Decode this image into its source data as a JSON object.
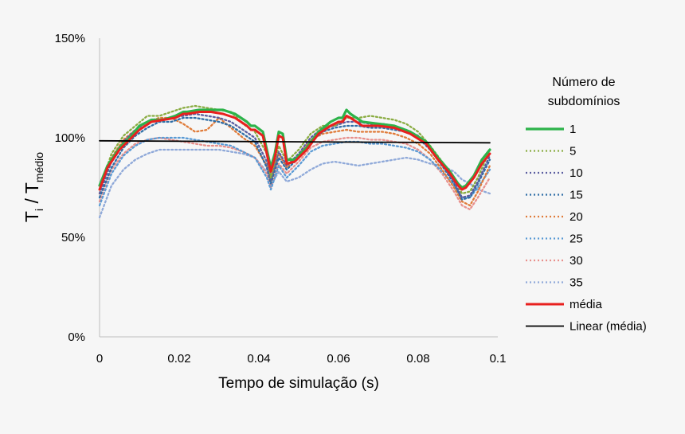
{
  "chart_data": {
    "type": "line",
    "xlabel": "Tempo de simulação (s)",
    "ylabel": {
      "t1": "T",
      "s1": "i",
      "mid": " / T",
      "s2": "médio"
    },
    "xlim": [
      0,
      0.1
    ],
    "ylim": [
      0,
      150
    ],
    "x_ticks": [
      {
        "value": 0,
        "label": "0"
      },
      {
        "value": 0.02,
        "label": "0.02"
      },
      {
        "value": 0.04,
        "label": "0.04"
      },
      {
        "value": 0.06,
        "label": "0.06"
      },
      {
        "value": 0.08,
        "label": "0.08"
      },
      {
        "value": 0.1,
        "label": "0.1"
      }
    ],
    "y_ticks": [
      {
        "value": 0,
        "label": "0%"
      },
      {
        "value": 50,
        "label": "50%"
      },
      {
        "value": 100,
        "label": "100%"
      },
      {
        "value": 150,
        "label": "150%"
      }
    ],
    "grid": false,
    "legend": {
      "title_line1": "Número de",
      "title_line2": "subdomínios",
      "position": "right"
    },
    "series": [
      {
        "name": "1",
        "color": "#2db34a",
        "style": "solid",
        "x": [
          0,
          0.002,
          0.005,
          0.008,
          0.01,
          0.013,
          0.016,
          0.019,
          0.021,
          0.022,
          0.025,
          0.028,
          0.031,
          0.034,
          0.037,
          0.038,
          0.039,
          0.041,
          0.043,
          0.044,
          0.045,
          0.046,
          0.047,
          0.049,
          0.052,
          0.055,
          0.058,
          0.06,
          0.061,
          0.062,
          0.063,
          0.066,
          0.07,
          0.074,
          0.078,
          0.082,
          0.085,
          0.088,
          0.09,
          0.091,
          0.092,
          0.094,
          0.096,
          0.098
        ],
        "y": [
          76,
          86,
          95,
          101,
          106,
          109,
          109,
          111,
          113,
          113,
          114,
          114,
          114,
          112,
          108,
          106,
          106,
          103,
          85,
          92,
          103,
          102,
          89,
          89,
          95,
          103,
          108,
          110,
          110,
          114,
          112,
          108,
          107,
          106,
          103,
          98,
          90,
          83,
          77,
          75,
          76,
          81,
          89,
          94
        ]
      },
      {
        "name": "5",
        "color": "#8aac42",
        "style": "dotted",
        "x": [
          0,
          0.003,
          0.006,
          0.009,
          0.012,
          0.015,
          0.018,
          0.021,
          0.024,
          0.027,
          0.03,
          0.033,
          0.036,
          0.039,
          0.042,
          0.043,
          0.045,
          0.047,
          0.05,
          0.053,
          0.056,
          0.059,
          0.062,
          0.065,
          0.068,
          0.071,
          0.074,
          0.077,
          0.08,
          0.083,
          0.086,
          0.089,
          0.091,
          0.093,
          0.095,
          0.098
        ],
        "y": [
          74,
          92,
          101,
          106,
          111,
          111,
          113,
          115,
          116,
          115,
          114,
          113,
          107,
          103,
          92,
          80,
          96,
          88,
          94,
          102,
          106,
          106,
          110,
          110,
          111,
          110,
          109,
          107,
          103,
          96,
          88,
          80,
          72,
          73,
          80,
          94
        ]
      },
      {
        "name": "10",
        "color": "#5b5ea0",
        "style": "dotted",
        "x": [
          0,
          0.003,
          0.006,
          0.009,
          0.012,
          0.015,
          0.018,
          0.021,
          0.024,
          0.027,
          0.03,
          0.033,
          0.036,
          0.039,
          0.042,
          0.043,
          0.045,
          0.047,
          0.05,
          0.053,
          0.056,
          0.059,
          0.062,
          0.065,
          0.068,
          0.071,
          0.074,
          0.077,
          0.08,
          0.083,
          0.086,
          0.089,
          0.091,
          0.093,
          0.095,
          0.098
        ],
        "y": [
          72,
          88,
          98,
          104,
          108,
          109,
          110,
          111,
          112,
          111,
          110,
          108,
          104,
          100,
          88,
          79,
          93,
          86,
          92,
          100,
          105,
          106,
          108,
          108,
          107,
          107,
          106,
          104,
          101,
          95,
          87,
          78,
          70,
          71,
          78,
          91
        ]
      },
      {
        "name": "15",
        "color": "#2f6ea6",
        "style": "dotted",
        "x": [
          0,
          0.003,
          0.006,
          0.009,
          0.012,
          0.015,
          0.018,
          0.021,
          0.024,
          0.027,
          0.03,
          0.033,
          0.036,
          0.039,
          0.042,
          0.043,
          0.045,
          0.047,
          0.05,
          0.053,
          0.056,
          0.059,
          0.062,
          0.065,
          0.068,
          0.071,
          0.074,
          0.077,
          0.08,
          0.083,
          0.086,
          0.089,
          0.091,
          0.093,
          0.095,
          0.098
        ],
        "y": [
          70,
          85,
          95,
          101,
          105,
          108,
          108,
          110,
          110,
          109,
          108,
          106,
          102,
          98,
          85,
          77,
          90,
          84,
          90,
          98,
          103,
          105,
          106,
          106,
          105,
          105,
          104,
          103,
          100,
          94,
          86,
          77,
          69,
          70,
          77,
          89
        ]
      },
      {
        "name": "20",
        "color": "#e07b39",
        "style": "dotted",
        "x": [
          0,
          0.003,
          0.006,
          0.009,
          0.012,
          0.015,
          0.018,
          0.021,
          0.024,
          0.027,
          0.03,
          0.033,
          0.036,
          0.039,
          0.042,
          0.043,
          0.045,
          0.047,
          0.05,
          0.053,
          0.056,
          0.059,
          0.062,
          0.065,
          0.068,
          0.071,
          0.074,
          0.077,
          0.08,
          0.083,
          0.086,
          0.089,
          0.091,
          0.093,
          0.095,
          0.098
        ],
        "y": [
          72,
          90,
          99,
          104,
          108,
          110,
          110,
          107,
          103,
          104,
          110,
          105,
          100,
          96,
          86,
          78,
          92,
          85,
          91,
          99,
          102,
          103,
          104,
          103,
          103,
          103,
          102,
          100,
          97,
          92,
          84,
          75,
          68,
          66,
          73,
          86
        ]
      },
      {
        "name": "25",
        "color": "#5b9bd5",
        "style": "dotted",
        "x": [
          0,
          0.003,
          0.006,
          0.009,
          0.012,
          0.015,
          0.018,
          0.021,
          0.024,
          0.027,
          0.03,
          0.033,
          0.036,
          0.039,
          0.042,
          0.043,
          0.045,
          0.047,
          0.05,
          0.053,
          0.056,
          0.059,
          0.062,
          0.065,
          0.068,
          0.071,
          0.074,
          0.077,
          0.08,
          0.083,
          0.086,
          0.089,
          0.091,
          0.093,
          0.095,
          0.098
        ],
        "y": [
          66,
          82,
          91,
          96,
          99,
          100,
          100,
          100,
          99,
          98,
          97,
          96,
          93,
          90,
          80,
          74,
          86,
          80,
          86,
          93,
          96,
          97,
          98,
          98,
          97,
          97,
          96,
          95,
          93,
          89,
          83,
          76,
          70,
          70,
          75,
          84
        ]
      },
      {
        "name": "30",
        "color": "#e8908c",
        "style": "dotted",
        "x": [
          0,
          0.003,
          0.006,
          0.009,
          0.012,
          0.015,
          0.018,
          0.021,
          0.024,
          0.027,
          0.03,
          0.033,
          0.036,
          0.039,
          0.042,
          0.043,
          0.045,
          0.047,
          0.05,
          0.053,
          0.056,
          0.059,
          0.062,
          0.065,
          0.068,
          0.071,
          0.074,
          0.077,
          0.08,
          0.083,
          0.086,
          0.089,
          0.091,
          0.093,
          0.095,
          0.098
        ],
        "y": [
          68,
          84,
          92,
          97,
          99,
          100,
          99,
          98,
          97,
          96,
          96,
          95,
          93,
          90,
          82,
          75,
          87,
          82,
          88,
          95,
          98,
          99,
          100,
          100,
          99,
          99,
          98,
          97,
          94,
          89,
          82,
          73,
          66,
          64,
          70,
          80
        ]
      },
      {
        "name": "35",
        "color": "#8fa9d9",
        "style": "dotted",
        "x": [
          0,
          0.003,
          0.006,
          0.009,
          0.012,
          0.015,
          0.018,
          0.021,
          0.024,
          0.027,
          0.03,
          0.033,
          0.036,
          0.039,
          0.042,
          0.043,
          0.045,
          0.047,
          0.05,
          0.053,
          0.056,
          0.059,
          0.062,
          0.065,
          0.068,
          0.071,
          0.074,
          0.077,
          0.08,
          0.083,
          0.086,
          0.089,
          0.091,
          0.093,
          0.095,
          0.098
        ],
        "y": [
          60,
          76,
          84,
          89,
          92,
          94,
          94,
          94,
          94,
          94,
          94,
          93,
          92,
          90,
          83,
          76,
          83,
          78,
          80,
          84,
          87,
          88,
          87,
          86,
          87,
          88,
          89,
          90,
          89,
          87,
          86,
          83,
          79,
          77,
          74,
          72
        ]
      },
      {
        "name": "média",
        "color": "#e8201e",
        "style": "solid",
        "x": [
          0,
          0.002,
          0.005,
          0.008,
          0.01,
          0.013,
          0.016,
          0.019,
          0.021,
          0.022,
          0.025,
          0.028,
          0.031,
          0.034,
          0.037,
          0.038,
          0.039,
          0.041,
          0.043,
          0.044,
          0.045,
          0.046,
          0.047,
          0.049,
          0.052,
          0.055,
          0.058,
          0.06,
          0.061,
          0.062,
          0.063,
          0.066,
          0.07,
          0.074,
          0.078,
          0.082,
          0.085,
          0.088,
          0.09,
          0.091,
          0.092,
          0.094,
          0.096,
          0.098
        ],
        "y": [
          74,
          85,
          94,
          100,
          104,
          108,
          109,
          110,
          112,
          112,
          113,
          113,
          112,
          110,
          106,
          104,
          104,
          101,
          83,
          90,
          101,
          100,
          87,
          88,
          94,
          102,
          106,
          108,
          108,
          111,
          110,
          106,
          106,
          105,
          102,
          97,
          89,
          82,
          76,
          74,
          75,
          80,
          87,
          92
        ]
      },
      {
        "name": "Linear (média)",
        "color": "#000000",
        "style": "solid",
        "x": [
          0,
          0.098
        ],
        "y": [
          98.5,
          97.5
        ]
      }
    ]
  }
}
